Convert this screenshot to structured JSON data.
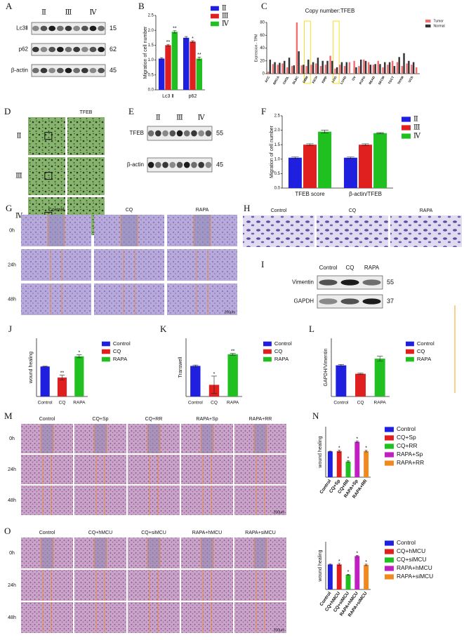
{
  "blots": [
    {
      "label": "A",
      "lanes": [
        "Ⅱ",
        "Ⅲ",
        "Ⅳ"
      ],
      "rows": [
        {
          "name": "Lc3Ⅱ",
          "kda": 15
        },
        {
          "name": "p62",
          "kda": 62
        },
        {
          "name": "β-actin",
          "kda": 45
        }
      ]
    },
    {
      "label": "E",
      "lanes": [
        "Ⅱ",
        "Ⅲ",
        "Ⅳ"
      ],
      "rows": [
        {
          "name": "TFEB",
          "kda": 55
        },
        {
          "name": "β-actin",
          "kda": 45
        }
      ]
    },
    {
      "label": "I",
      "lanes": [
        "Control",
        "CQ",
        "RAPA"
      ],
      "rows": [
        {
          "name": "Vimentin",
          "kda": 55
        },
        {
          "name": "GAPDH",
          "kda": 37
        }
      ]
    }
  ],
  "image_panels": [
    {
      "label": "D",
      "columns": [
        null,
        "TFEB"
      ],
      "rows": [
        "Ⅱ",
        "Ⅲ",
        "Ⅳ"
      ]
    },
    {
      "label": "G",
      "columns": [
        "Control",
        "CQ",
        "RAPA"
      ],
      "rows": [
        "0h",
        "24h",
        "48h"
      ],
      "scale": "200μm"
    },
    {
      "label": "H",
      "columns": [
        "Control",
        "CQ",
        "RAPA"
      ]
    },
    {
      "label": "M",
      "columns": [
        "Control",
        "CQ+Sp",
        "CQ+RR",
        "RAPA+Sp",
        "RAPA+RR"
      ],
      "rows": [
        "0h",
        "24h",
        "48h"
      ],
      "scale": "200μm"
    },
    {
      "label": "O",
      "columns": [
        "Control",
        "CQ+hMCU",
        "CQ+siMCU",
        "RAPA+hMCU",
        "RAPA+siMCU"
      ],
      "rows": [
        "0h",
        "24h",
        "48h"
      ],
      "scale": "200μm"
    }
  ],
  "chart_data": [
    {
      "label": "B",
      "type": "bar",
      "y_label": "Migration of cell number",
      "categories": [
        "Lc3 Ⅱ",
        "p62"
      ],
      "series": [
        {
          "name": "Ⅱ",
          "color": "#1f1fe0",
          "values": [
            1.05,
            1.75
          ],
          "errors": [
            0.03,
            0.04
          ],
          "stars": [
            null,
            null
          ]
        },
        {
          "name": "Ⅲ",
          "color": "#e01f1f",
          "values": [
            1.5,
            1.62
          ],
          "errors": [
            0.03,
            0.03
          ],
          "stars": [
            "**",
            "*"
          ]
        },
        {
          "name": "Ⅳ",
          "color": "#1fc01f",
          "values": [
            1.95,
            1.05
          ],
          "errors": [
            0.04,
            0.05
          ],
          "stars": [
            "**",
            "**"
          ]
        }
      ],
      "ylim": [
        0,
        2.5
      ],
      "yticks": [
        {
          "value": 0,
          "label": "0.0"
        },
        0.5,
        {
          "value": 1,
          "label": "1.0"
        },
        1.5,
        {
          "value": 2,
          "label": "2.0"
        },
        2.5
      ]
    },
    {
      "label": "C",
      "type": "bar",
      "title": "Copy number:TFEB",
      "y_label": "Expression - TPM",
      "categories": [
        "ACC",
        null,
        "BRCA",
        null,
        "CHOL",
        null,
        "DLBC",
        null,
        "GBM",
        null,
        "KICH",
        null,
        "KIRP",
        null,
        "LGG",
        null,
        "LUAD",
        null,
        "OV",
        null,
        "PCPG",
        null,
        "READ",
        null,
        "SKCM",
        null,
        "TGCT",
        null,
        "THYM",
        null,
        "UCS",
        null
      ],
      "series": [
        {
          "name": "Tumor",
          "color": "#f07070",
          "values": [
            3,
            15,
            14,
            16,
            10,
            12,
            80,
            13,
            12,
            14,
            16,
            12,
            14,
            28,
            8,
            14,
            12,
            18,
            20,
            12,
            22,
            18,
            14,
            20,
            10,
            14,
            20,
            18,
            12,
            16,
            14,
            10
          ]
        },
        {
          "name": "Normal",
          "color": "#333333",
          "values": [
            22,
            18,
            17,
            20,
            25,
            13,
            35,
            14,
            22,
            18,
            25,
            20,
            20,
            20,
            10,
            18,
            18,
            null,
            10,
            22,
            20,
            14,
            15,
            15,
            18,
            18,
            12,
            26,
            32,
            20,
            18,
            null
          ]
        }
      ],
      "ylim": [
        0,
        80
      ],
      "yticks": [
        0,
        20,
        40,
        60,
        80
      ]
    },
    {
      "label": "F",
      "type": "bar",
      "y_label": "Migration of cell number",
      "categories": [
        "TFEB score",
        "β-actin/TFEB"
      ],
      "series": [
        {
          "name": "Ⅱ",
          "color": "#1f1fe0",
          "values": [
            1.05,
            1.05
          ],
          "errors": [
            0.03,
            0.03
          ]
        },
        {
          "name": "Ⅲ",
          "color": "#e01f1f",
          "values": [
            1.5,
            1.5
          ],
          "errors": [
            0.03,
            0.03
          ]
        },
        {
          "name": "Ⅳ",
          "color": "#1fc01f",
          "values": [
            1.95,
            1.9
          ],
          "errors": [
            0.05,
            0.02
          ]
        }
      ],
      "ylim": [
        0,
        2.5
      ],
      "yticks": [
        {
          "value": 0,
          "label": "0.0"
        },
        0.5,
        {
          "value": 1,
          "label": "1.0"
        },
        1.5,
        {
          "value": 2,
          "label": "2.0"
        },
        2.5
      ]
    },
    {
      "label": "J",
      "type": "bar",
      "y_label": "wound healing",
      "categories": [
        "Control",
        "CQ",
        "RAPA"
      ],
      "colors": [
        "#1f1fe0",
        "#e01f1f",
        "#1fc01f"
      ],
      "values": [
        1.03,
        0.65,
        1.38
      ],
      "errors": [
        0.01,
        0.08,
        0.05
      ],
      "stars": [
        null,
        "**",
        "*"
      ],
      "ylim": [
        0,
        2
      ]
    },
    {
      "label": "K",
      "type": "bar",
      "y_label": "Transwell",
      "categories": [
        "Control",
        "CQ",
        "RAPA"
      ],
      "colors": [
        "#1f1fe0",
        "#e01f1f",
        "#1fc01f"
      ],
      "values": [
        1.05,
        0.4,
        1.45
      ],
      "errors": [
        0.03,
        0.3,
        0.03
      ],
      "stars": [
        null,
        "*",
        "**"
      ],
      "ylim": [
        0,
        2
      ]
    },
    {
      "label": "L",
      "type": "bar",
      "y_label": "GAPDH/Vimentin",
      "categories": [
        "Control",
        "CQ",
        "RAPA"
      ],
      "colors": [
        "#1f1fe0",
        "#e01f1f",
        "#1fc01f"
      ],
      "values": [
        1.07,
        0.78,
        1.3
      ],
      "errors": [
        0.03,
        0.02,
        0.08
      ],
      "ylim": [
        0,
        2
      ]
    },
    {
      "label": "N",
      "type": "bar",
      "y_label": "wound healing",
      "categories": [
        "Control",
        "CQ+Sp",
        "CQ+RR",
        "RAPA+Sp",
        "RAPA+RR"
      ],
      "colors": [
        "#1f1fe0",
        "#e01f1f",
        "#1fc01f",
        "#c21fc2",
        "#f08a1f"
      ],
      "values": [
        1.02,
        1.03,
        0.62,
        1.4,
        1.03
      ],
      "errors": [
        0.01,
        0.04,
        0.03,
        0.03,
        0.03
      ],
      "stars": [
        null,
        "*",
        "*",
        "*",
        "*"
      ],
      "ylim": [
        0,
        2
      ]
    },
    {
      "type": "bar",
      "y_label": "wound healing",
      "categories": [
        "Control",
        "CQ+hMCU",
        "CQ+siMCU",
        "RAPA+hMCU",
        "RAPA+siMCU"
      ],
      "colors": [
        "#1f1fe0",
        "#e01f1f",
        "#1fc01f",
        "#c21fc2",
        "#f08a1f"
      ],
      "values": [
        1.05,
        1.05,
        0.62,
        1.4,
        1.03
      ],
      "errors": [
        0.02,
        0.04,
        0.02,
        0.02,
        0.03
      ],
      "stars": [
        null,
        "*",
        "*",
        "*",
        "*"
      ],
      "ylim": [
        0,
        2
      ]
    }
  ]
}
